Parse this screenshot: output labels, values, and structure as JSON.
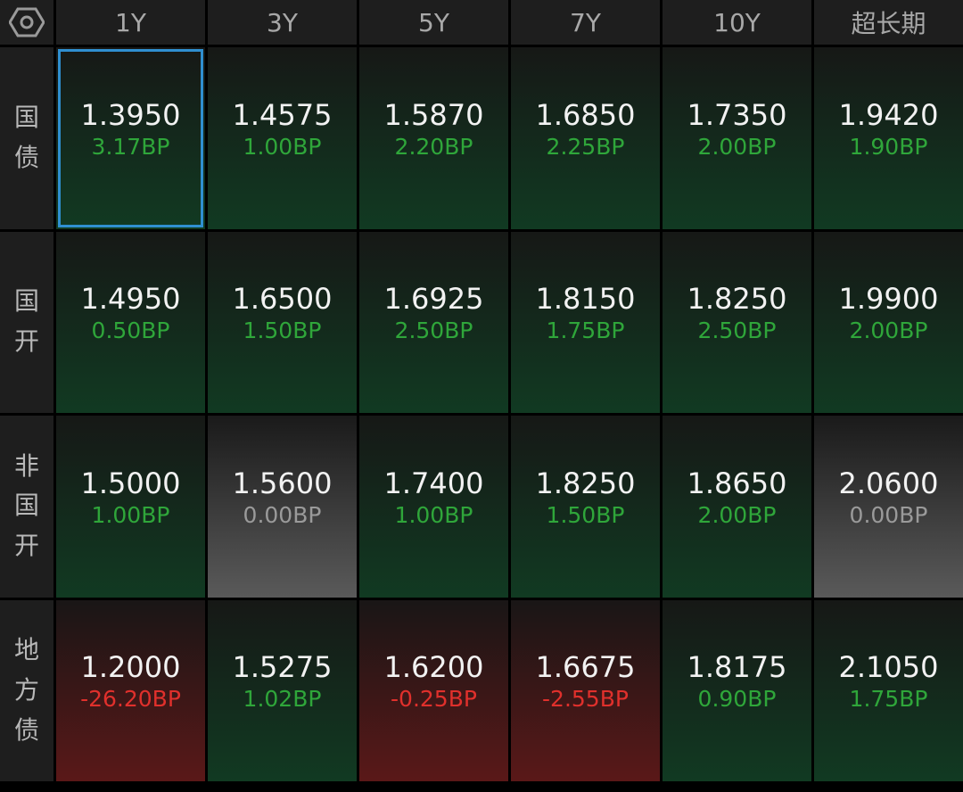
{
  "columns": [
    "1Y",
    "3Y",
    "5Y",
    "7Y",
    "10Y",
    "超长期"
  ],
  "rows": [
    {
      "label": "国债",
      "cells": [
        [
          "1.3950",
          "3.17BP"
        ],
        [
          "1.4575",
          "1.00BP"
        ],
        [
          "1.5870",
          "2.20BP"
        ],
        [
          "1.6850",
          "2.25BP"
        ],
        [
          "1.7350",
          "2.00BP"
        ],
        [
          "1.9420",
          "1.90BP"
        ]
      ]
    },
    {
      "label": "国开",
      "cells": [
        [
          "1.4950",
          "0.50BP"
        ],
        [
          "1.6500",
          "1.50BP"
        ],
        [
          "1.6925",
          "2.50BP"
        ],
        [
          "1.8150",
          "1.75BP"
        ],
        [
          "1.8250",
          "2.50BP"
        ],
        [
          "1.9900",
          "2.00BP"
        ]
      ]
    },
    {
      "label": "非国开",
      "cells": [
        [
          "1.5000",
          "1.00BP"
        ],
        [
          "1.5600",
          "0.00BP"
        ],
        [
          "1.7400",
          "1.00BP"
        ],
        [
          "1.8250",
          "1.50BP"
        ],
        [
          "1.8650",
          "2.00BP"
        ],
        [
          "2.0600",
          "0.00BP"
        ]
      ]
    },
    {
      "label": "地方债",
      "cells": [
        [
          "1.2000",
          "-26.20BP"
        ],
        [
          "1.5275",
          "1.02BP"
        ],
        [
          "1.6200",
          "-0.25BP"
        ],
        [
          "1.6675",
          "-2.55BP"
        ],
        [
          "1.8175",
          "0.90BP"
        ],
        [
          "2.1050",
          "1.75BP"
        ]
      ]
    }
  ]
}
